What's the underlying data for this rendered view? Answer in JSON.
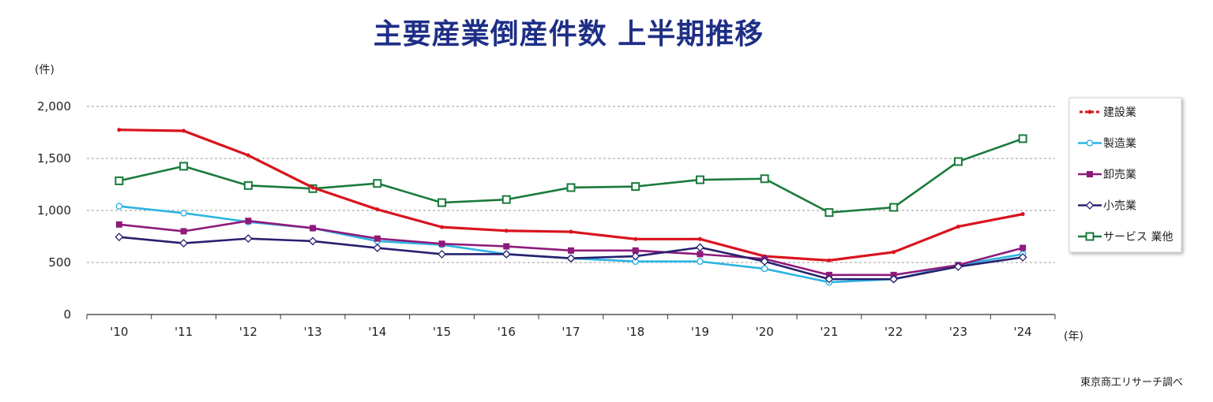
{
  "chart_data": {
    "type": "line",
    "title": "主要産業倒産件数 上半期推移",
    "ylabel": "(件)",
    "xlabel": "(年)",
    "categories": [
      "'10",
      "'11",
      "'12",
      "'13",
      "'14",
      "'15",
      "'16",
      "'17",
      "'18",
      "'19",
      "'20",
      "'21",
      "'22",
      "'23",
      "'24"
    ],
    "ylim": [
      0,
      2000
    ],
    "yticks": [
      0,
      500,
      1000,
      1500,
      2000
    ],
    "ytick_labels": [
      "0",
      "500",
      "1,000",
      "1,500",
      "2,000"
    ],
    "grid": true,
    "legend_position": "right",
    "series": [
      {
        "name": "建設業",
        "color": "#d9131e",
        "marker": "dot",
        "dashed_legend": true,
        "values": [
          1775,
          1765,
          1530,
          1220,
          1010,
          840,
          805,
          795,
          725,
          725,
          560,
          520,
          600,
          845,
          965
        ]
      },
      {
        "name": "製造業",
        "color": "#2eb3e3",
        "marker": "circle",
        "values": [
          1040,
          975,
          890,
          830,
          705,
          670,
          580,
          540,
          510,
          510,
          440,
          310,
          340,
          475,
          580
        ]
      },
      {
        "name": "卸売業",
        "color": "#8e1a7a",
        "marker": "square",
        "values": [
          865,
          800,
          900,
          830,
          730,
          680,
          655,
          615,
          615,
          580,
          535,
          380,
          380,
          475,
          640
        ]
      },
      {
        "name": "小売業",
        "color": "#27206e",
        "marker": "diamond",
        "values": [
          745,
          685,
          730,
          705,
          640,
          580,
          580,
          540,
          560,
          645,
          510,
          340,
          340,
          460,
          550
        ]
      },
      {
        "name": "サービス 業他",
        "color": "#1a7a3c",
        "marker": "open-square",
        "values": [
          1285,
          1425,
          1240,
          1210,
          1260,
          1075,
          1105,
          1220,
          1230,
          1295,
          1305,
          980,
          1030,
          1470,
          1690
        ]
      }
    ]
  },
  "source_note": "東京商工リサーチ調べ"
}
